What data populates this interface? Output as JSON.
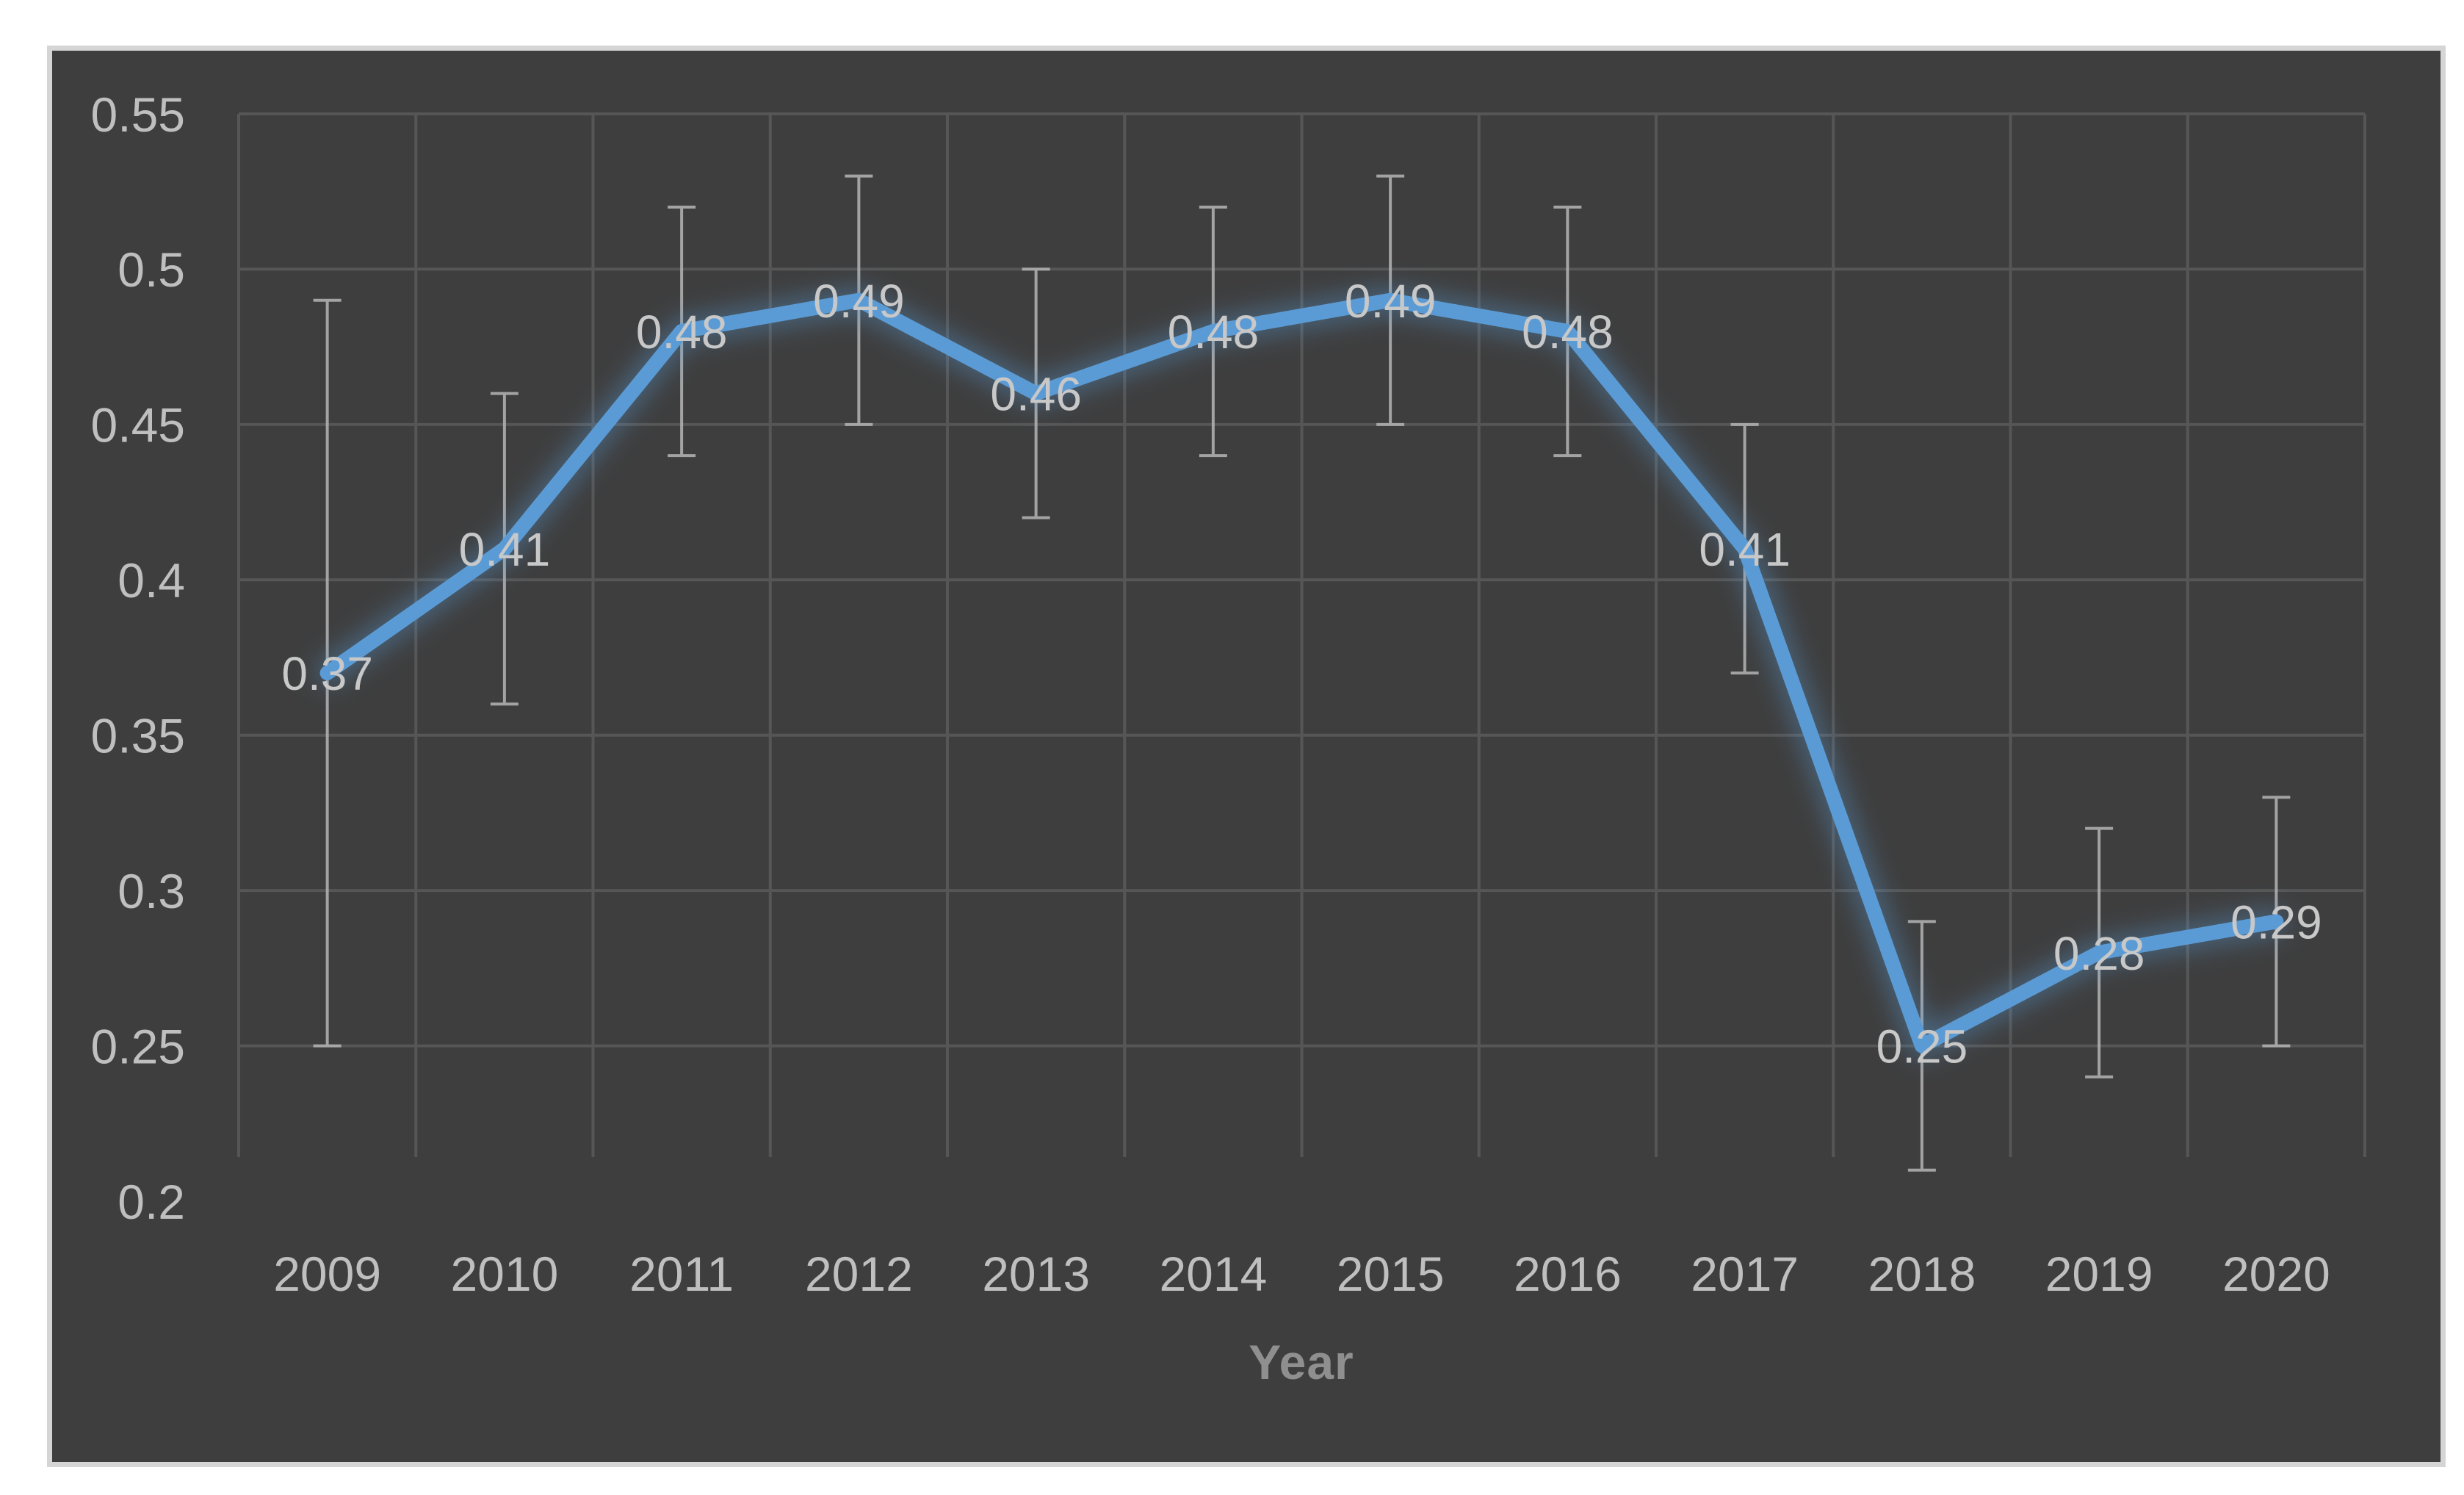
{
  "style": {
    "page_bg": "#ffffff",
    "panel_bg": "#3e3e3e",
    "panel_border": "#d5d5d5",
    "gridline_color": "#565656",
    "tick_label_color": "#bfbfbf",
    "data_label_color": "#c8c8c8",
    "axis_title_color": "#8f8f8f",
    "line_color": "#5b9bd5",
    "error_bar_color": "#b5b5b5"
  },
  "chart_data": {
    "type": "line",
    "title": "",
    "xlabel": "Year",
    "ylabel": "",
    "categories": [
      "2009",
      "2010",
      "2011",
      "2012",
      "2013",
      "2014",
      "2015",
      "2016",
      "2017",
      "2018",
      "2019",
      "2020"
    ],
    "series": [
      {
        "name": "",
        "values": [
          0.37,
          0.41,
          0.48,
          0.49,
          0.46,
          0.48,
          0.49,
          0.48,
          0.41,
          0.25,
          0.28,
          0.29
        ],
        "data_labels": [
          "0.37",
          "0.41",
          "0.48",
          "0.49",
          "0.46",
          "0.48",
          "0.49",
          "0.48",
          "0.41",
          "0.25",
          "0.28",
          "0.29"
        ],
        "error_low": [
          0.25,
          0.36,
          0.44,
          0.45,
          0.42,
          0.44,
          0.45,
          0.44,
          0.37,
          0.21,
          0.24,
          0.25
        ],
        "error_high": [
          0.49,
          0.46,
          0.52,
          0.53,
          0.5,
          0.52,
          0.53,
          0.52,
          0.45,
          0.29,
          0.32,
          0.33
        ]
      }
    ],
    "ylim": [
      0.2,
      0.55
    ],
    "ytick_values": [
      0.55,
      0.5,
      0.45,
      0.4,
      0.35,
      0.3,
      0.25,
      0.2
    ],
    "ytick_labels": [
      "0.55",
      "0.5",
      "0.45",
      "0.4",
      "0.35",
      "0.3",
      "0.25",
      "0.2"
    ],
    "grid": true,
    "legend_position": "none",
    "marker": "none"
  }
}
